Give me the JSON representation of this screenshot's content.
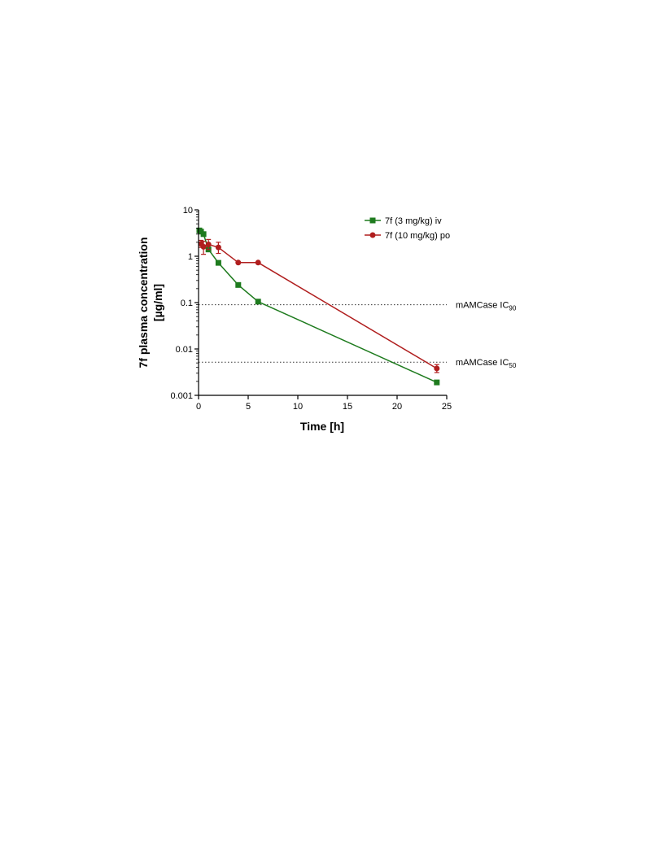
{
  "chart_data": {
    "type": "line",
    "xlabel": "Time [h]",
    "ylabel_line1": "7f plasma concentration",
    "ylabel_line2": "[µg/ml]",
    "xlim": [
      0,
      25
    ],
    "ylim": [
      0.001,
      10
    ],
    "yscale": "log",
    "xticks": [
      0,
      5,
      10,
      15,
      20,
      25
    ],
    "yticks": [
      0.001,
      0.01,
      0.1,
      1,
      10
    ],
    "ytick_labels": [
      "0.001",
      "0.01",
      "0.1",
      "1",
      "10"
    ],
    "grid": false,
    "legend_position": "top-right",
    "series": [
      {
        "name": "7f (3 mg/kg) iv",
        "color": "#1e7b1e",
        "marker": "square",
        "x": [
          0.083,
          0.25,
          0.5,
          1,
          2,
          4,
          6,
          24
        ],
        "y": [
          3.6,
          3.4,
          3.0,
          1.4,
          0.72,
          0.24,
          0.105,
          0.0019
        ]
      },
      {
        "name": "7f (10 mg/kg) po",
        "color": "#b01e1e",
        "marker": "circle",
        "x": [
          0.25,
          0.5,
          1,
          2,
          4,
          6,
          24
        ],
        "y": [
          1.85,
          1.6,
          1.8,
          1.55,
          0.73,
          0.73,
          0.0038
        ],
        "err_lo": [
          1.55,
          1.1,
          1.4,
          1.15,
          0.73,
          0.73,
          0.0031
        ],
        "err_hi": [
          2.2,
          2.1,
          2.3,
          2.0,
          0.73,
          0.73,
          0.0046
        ]
      }
    ],
    "reference_lines": [
      {
        "y": 0.09,
        "label_main": "mAMCase IC",
        "label_sub": "90"
      },
      {
        "y": 0.0052,
        "label_main": "mAMCase IC",
        "label_sub": "50"
      }
    ]
  }
}
